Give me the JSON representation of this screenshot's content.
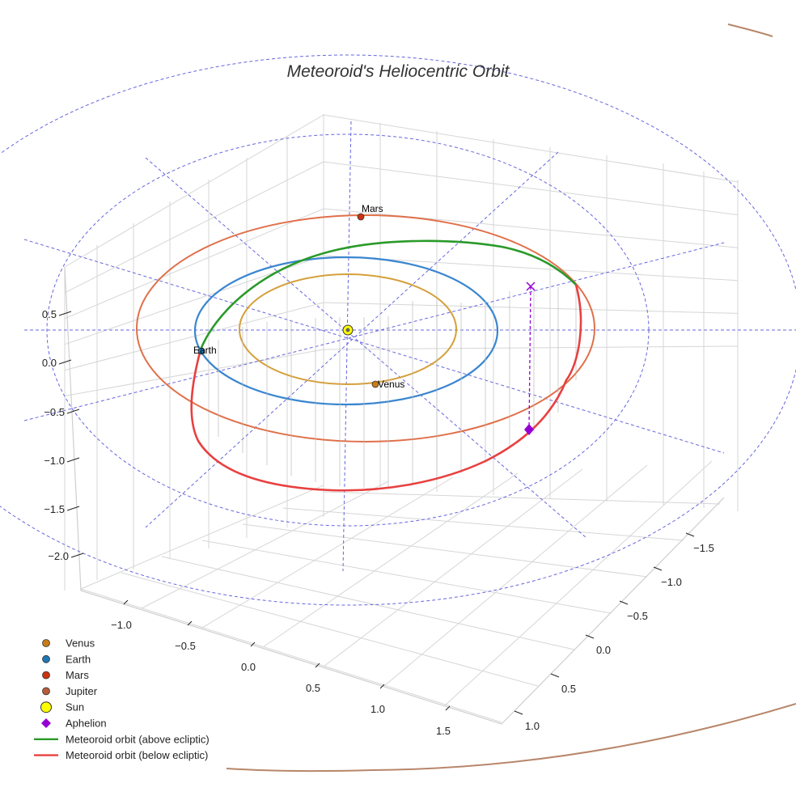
{
  "chart_data": {
    "type": "line3d",
    "title": "Meteoroid's Heliocentric Orbit",
    "grid": true,
    "axes": {
      "z_ticks": [
        "0.5",
        "0.0",
        "−0.5",
        "−1.0",
        "−1.5",
        "−2.0"
      ],
      "x_ticks": [
        "−1.0",
        "−0.5",
        "0.0",
        "0.5",
        "1.0",
        "1.5"
      ],
      "y_ticks": [
        "−1.5",
        "−1.0",
        "−0.5",
        "0.0",
        "0.5",
        "1.0"
      ]
    },
    "bodies": [
      {
        "name": "Venus",
        "orbit_radius_au": 0.72,
        "color": "#d4a03c",
        "marker_color": "#c97c14",
        "label": "Venus"
      },
      {
        "name": "Earth",
        "orbit_radius_au": 1.0,
        "color": "#3a86d0",
        "marker_color": "#1f77b4",
        "label": "Earth"
      },
      {
        "name": "Mars",
        "orbit_radius_au": 1.52,
        "color": "#e0704a",
        "marker_color": "#cc3311",
        "label": "Mars"
      },
      {
        "name": "Jupiter",
        "orbit_radius_au": 5.2,
        "color": "#b8866a",
        "marker_color": "#b85c38",
        "label": ""
      }
    ],
    "sun": {
      "name": "Sun",
      "color": "#ffff00"
    },
    "meteoroid": {
      "above_color": "#2a9a2a",
      "below_color": "#e84040",
      "aphelion_color": "#9400d3"
    },
    "ecliptic_grid_color": "#6666dd"
  },
  "legend": {
    "placement": "bottom-left",
    "items": [
      {
        "label": "Venus",
        "kind": "dot",
        "color": "#c97c14"
      },
      {
        "label": "Earth",
        "kind": "dot",
        "color": "#1f77b4"
      },
      {
        "label": "Mars",
        "kind": "dot",
        "color": "#cc3311"
      },
      {
        "label": "Jupiter",
        "kind": "dot",
        "color": "#b85c38"
      },
      {
        "label": "Sun",
        "kind": "sun",
        "color": "#ffff00"
      },
      {
        "label": "Aphelion",
        "kind": "diamond",
        "color": "#9400d3"
      },
      {
        "label": "Meteoroid orbit (above ecliptic)",
        "kind": "line",
        "color": "#2a9a2a"
      },
      {
        "label": "Meteoroid orbit (below ecliptic)",
        "kind": "line",
        "color": "#e84040"
      }
    ]
  }
}
